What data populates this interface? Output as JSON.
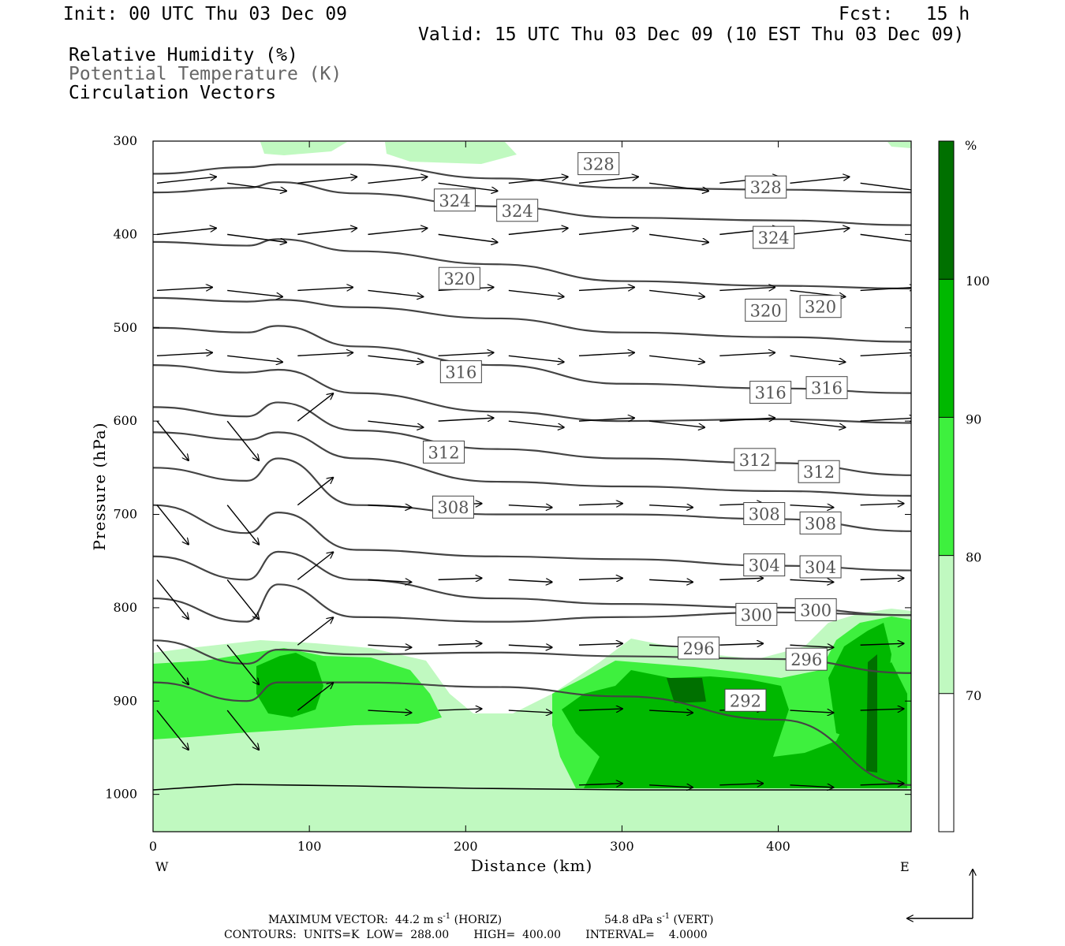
{
  "header": {
    "init": "Init: 00 UTC Thu 03 Dec 09",
    "fcst": "Fcst:   15 h",
    "valid": "Valid: 15 UTC Thu 03 Dec 09 (10 EST Thu 03 Dec 09)",
    "legend": [
      "Relative Humidity (%)",
      "Potential Temperature (K)",
      "Circulation Vectors"
    ],
    "legend_colors": [
      "#000000",
      "#666666",
      "#000000"
    ]
  },
  "chart_data": {
    "type": "heatmap",
    "title": "",
    "xlabel": "Distance (km)",
    "ylabel": "Pressure (hPa)",
    "xlim": [
      0,
      485
    ],
    "ylim": [
      1040,
      300
    ],
    "xticks": [
      0,
      100,
      200,
      300,
      400
    ],
    "yticks": [
      300,
      400,
      500,
      600,
      700,
      800,
      900,
      1000
    ],
    "x_end_labels": {
      "left": "W",
      "right": "E"
    },
    "colorbar": {
      "unit": "%",
      "levels": [
        70,
        80,
        90,
        100
      ],
      "colors": [
        "#ffffff",
        "#c0f9c0",
        "#3ef03e",
        "#00b800",
        "#007000"
      ]
    },
    "rh_shading_units": "%",
    "theta_contours": {
      "units": "K",
      "interval": 4,
      "color": "#444444",
      "labels": [
        {
          "value": "328",
          "x": 285,
          "p": 325
        },
        {
          "value": "328",
          "x": 392,
          "p": 350
        },
        {
          "value": "324",
          "x": 193,
          "p": 364
        },
        {
          "value": "324",
          "x": 233,
          "p": 375
        },
        {
          "value": "324",
          "x": 397,
          "p": 404
        },
        {
          "value": "320",
          "x": 196,
          "p": 448
        },
        {
          "value": "320",
          "x": 392,
          "p": 482
        },
        {
          "value": "320",
          "x": 427,
          "p": 478
        },
        {
          "value": "316",
          "x": 197,
          "p": 548
        },
        {
          "value": "316",
          "x": 395,
          "p": 570
        },
        {
          "value": "316",
          "x": 431,
          "p": 565
        },
        {
          "value": "312",
          "x": 186,
          "p": 634
        },
        {
          "value": "312",
          "x": 385,
          "p": 642
        },
        {
          "value": "312",
          "x": 426,
          "p": 655
        },
        {
          "value": "308",
          "x": 192,
          "p": 693
        },
        {
          "value": "308",
          "x": 391,
          "p": 700
        },
        {
          "value": "308",
          "x": 427,
          "p": 710
        },
        {
          "value": "304",
          "x": 391,
          "p": 755
        },
        {
          "value": "304",
          "x": 427,
          "p": 757
        },
        {
          "value": "300",
          "x": 386,
          "p": 808
        },
        {
          "value": "300",
          "x": 424,
          "p": 803
        },
        {
          "value": "296",
          "x": 349,
          "p": 844
        },
        {
          "value": "296",
          "x": 418,
          "p": 856
        },
        {
          "value": "292",
          "x": 379,
          "p": 900
        }
      ]
    },
    "max_vector": "MAXIMUM VECTOR:  44.2 m s",
    "max_vector_sup": "-1",
    "max_vector_h": " (HORIZ)",
    "max_vector_v": "54.8 dPa s",
    "max_vector_v_sup": "-1",
    "max_vector_v_end": " (VERT)",
    "contours_info": "CONTOURS:  UNITS=K  LOW=  288.00       HIGH=  400.00       INTERVAL=    4.0000"
  }
}
